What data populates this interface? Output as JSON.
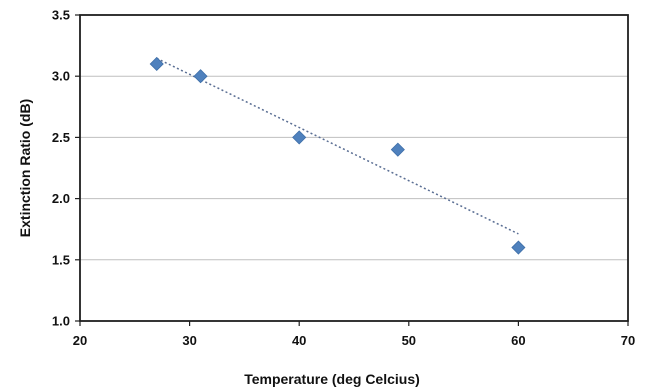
{
  "chart_data": {
    "type": "scatter",
    "title": "",
    "xlabel": "Temperature (deg Celcius)",
    "ylabel": "Extinction Ratio (dB)",
    "xlim": [
      20,
      70
    ],
    "ylim": [
      1.0,
      3.5
    ],
    "xticks": [
      20,
      30,
      40,
      50,
      60,
      70
    ],
    "yticks": [
      1.0,
      1.5,
      2.0,
      2.5,
      3.0,
      3.5
    ],
    "xtick_labels": [
      "20",
      "30",
      "40",
      "50",
      "60",
      "70"
    ],
    "ytick_labels": [
      "1.0",
      "1.5",
      "2.0",
      "2.5",
      "3.0",
      "3.5"
    ],
    "grid": "horizontal",
    "legend": "none",
    "marker": "diamond",
    "series": [
      {
        "x": [
          27,
          31,
          40,
          49,
          60
        ],
        "y": [
          3.1,
          3.0,
          2.5,
          2.4,
          1.6
        ],
        "color": "#4f81bd"
      }
    ],
    "trendline": {
      "type": "linear",
      "style": "dotted",
      "color": "#5a6e93",
      "x_range": [
        27,
        60
      ]
    }
  }
}
